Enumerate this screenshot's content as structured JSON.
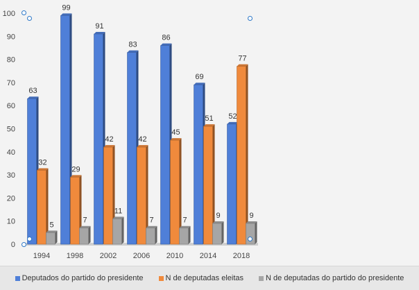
{
  "chart_data": {
    "type": "bar",
    "categories": [
      "1994",
      "1998",
      "2002",
      "2006",
      "2010",
      "2014",
      "2018"
    ],
    "series": [
      {
        "name": "Deputados do partido do presidente",
        "values": [
          63,
          99,
          91,
          83,
          86,
          69,
          52
        ],
        "color": "#4f7fd8"
      },
      {
        "name": "N de deputadas eleitas",
        "values": [
          32,
          29,
          42,
          42,
          45,
          51,
          77
        ],
        "color": "#f08a3c"
      },
      {
        "name": "N de deputadas do partido do presidente",
        "values": [
          5,
          7,
          11,
          7,
          7,
          9,
          9
        ],
        "color": "#a6a6a6"
      }
    ],
    "ylim": [
      0,
      100
    ],
    "yticks": [
      0,
      10,
      20,
      30,
      40,
      50,
      60,
      70,
      80,
      90,
      100
    ],
    "grid": false,
    "legend_position": "bottom",
    "data_labels": true
  }
}
